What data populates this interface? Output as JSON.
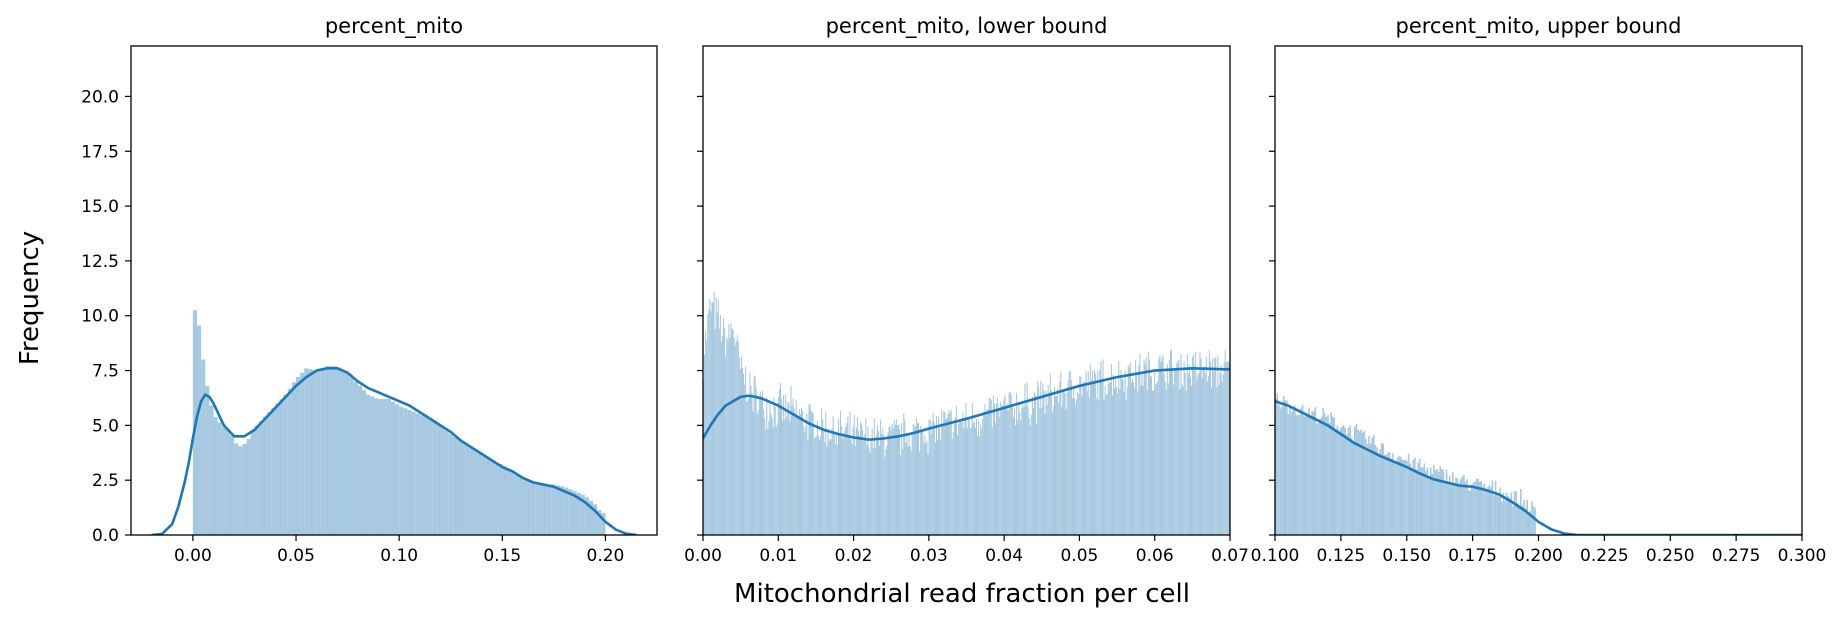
{
  "figure": {
    "ylabel": "Frequency",
    "xlabel": "Mitochondrial read fraction per cell"
  },
  "colors": {
    "bar": "#a6c8e0",
    "kde": "#1f77b4"
  },
  "chart_data": [
    {
      "type": "bar",
      "title": "percent_mito",
      "xlim": [
        -0.03,
        0.225
      ],
      "ylim": [
        0,
        22.3
      ],
      "xticks": [
        "0.00",
        "0.05",
        "0.10",
        "0.15",
        "0.20"
      ],
      "xtick_values": [
        0.0,
        0.05,
        0.1,
        0.15,
        0.2
      ],
      "yticks": [
        "0.0",
        "2.5",
        "5.0",
        "7.5",
        "10.0",
        "12.5",
        "15.0",
        "17.5",
        "20.0"
      ],
      "ytick_values": [
        0,
        2.5,
        5,
        7.5,
        10,
        12.5,
        15,
        17.5,
        20
      ],
      "bins": {
        "x_start": 0.0,
        "x_end": 0.2,
        "width": 0.002
      },
      "bar_anchors": [
        [
          0.0,
          10.1
        ],
        [
          0.002,
          10.4
        ],
        [
          0.004,
          8.7
        ],
        [
          0.006,
          7.3
        ],
        [
          0.008,
          6.3
        ],
        [
          0.01,
          5.5
        ],
        [
          0.014,
          5.0
        ],
        [
          0.018,
          4.7
        ],
        [
          0.022,
          4.0
        ],
        [
          0.026,
          4.2
        ],
        [
          0.03,
          4.9
        ],
        [
          0.035,
          5.4
        ],
        [
          0.04,
          5.9
        ],
        [
          0.045,
          6.4
        ],
        [
          0.05,
          7.1
        ],
        [
          0.055,
          7.6
        ],
        [
          0.06,
          7.5
        ],
        [
          0.065,
          7.7
        ],
        [
          0.07,
          7.7
        ],
        [
          0.075,
          7.4
        ],
        [
          0.08,
          6.9
        ],
        [
          0.085,
          6.4
        ],
        [
          0.09,
          6.2
        ],
        [
          0.095,
          6.2
        ],
        [
          0.1,
          5.9
        ],
        [
          0.105,
          5.7
        ],
        [
          0.11,
          5.5
        ],
        [
          0.115,
          5.3
        ],
        [
          0.12,
          5.0
        ],
        [
          0.125,
          4.6
        ],
        [
          0.13,
          4.3
        ],
        [
          0.135,
          4.0
        ],
        [
          0.14,
          3.7
        ],
        [
          0.145,
          3.4
        ],
        [
          0.15,
          3.2
        ],
        [
          0.155,
          2.9
        ],
        [
          0.16,
          2.6
        ],
        [
          0.165,
          2.4
        ],
        [
          0.17,
          2.3
        ],
        [
          0.175,
          2.3
        ],
        [
          0.18,
          2.2
        ],
        [
          0.185,
          2.0
        ],
        [
          0.19,
          1.8
        ],
        [
          0.195,
          1.4
        ],
        [
          0.198,
          1.0
        ]
      ],
      "kde": [
        [
          -0.02,
          0.0
        ],
        [
          -0.015,
          0.05
        ],
        [
          -0.01,
          0.5
        ],
        [
          -0.007,
          1.3
        ],
        [
          -0.004,
          2.4
        ],
        [
          -0.002,
          3.3
        ],
        [
          0.0,
          4.4
        ],
        [
          0.002,
          5.4
        ],
        [
          0.004,
          6.1
        ],
        [
          0.006,
          6.4
        ],
        [
          0.008,
          6.3
        ],
        [
          0.01,
          6.0
        ],
        [
          0.012,
          5.6
        ],
        [
          0.015,
          5.0
        ],
        [
          0.02,
          4.5
        ],
        [
          0.025,
          4.5
        ],
        [
          0.03,
          4.8
        ],
        [
          0.035,
          5.3
        ],
        [
          0.04,
          5.8
        ],
        [
          0.045,
          6.3
        ],
        [
          0.05,
          6.8
        ],
        [
          0.055,
          7.2
        ],
        [
          0.06,
          7.5
        ],
        [
          0.065,
          7.6
        ],
        [
          0.07,
          7.6
        ],
        [
          0.075,
          7.4
        ],
        [
          0.08,
          7.0
        ],
        [
          0.085,
          6.7
        ],
        [
          0.09,
          6.5
        ],
        [
          0.095,
          6.3
        ],
        [
          0.1,
          6.1
        ],
        [
          0.105,
          5.9
        ],
        [
          0.11,
          5.6
        ],
        [
          0.115,
          5.3
        ],
        [
          0.12,
          5.0
        ],
        [
          0.125,
          4.7
        ],
        [
          0.13,
          4.3
        ],
        [
          0.135,
          4.0
        ],
        [
          0.14,
          3.7
        ],
        [
          0.145,
          3.4
        ],
        [
          0.15,
          3.1
        ],
        [
          0.155,
          2.9
        ],
        [
          0.16,
          2.6
        ],
        [
          0.165,
          2.4
        ],
        [
          0.17,
          2.3
        ],
        [
          0.175,
          2.2
        ],
        [
          0.18,
          2.0
        ],
        [
          0.185,
          1.8
        ],
        [
          0.19,
          1.5
        ],
        [
          0.195,
          1.1
        ],
        [
          0.2,
          0.6
        ],
        [
          0.205,
          0.25
        ],
        [
          0.21,
          0.06
        ],
        [
          0.215,
          0.0
        ]
      ]
    },
    {
      "type": "bar",
      "title": "percent_mito, lower bound",
      "xlim": [
        0.0,
        0.07
      ],
      "ylim": [
        0,
        22.3
      ],
      "xticks": [
        "0.00",
        "0.01",
        "0.02",
        "0.03",
        "0.04",
        "0.05",
        "0.06",
        "0.07"
      ],
      "xtick_values": [
        0.0,
        0.01,
        0.02,
        0.03,
        0.04,
        0.05,
        0.06,
        0.07
      ],
      "yticks": [
        "0.0",
        "2.5",
        "5.0",
        "7.5",
        "10.0",
        "12.5",
        "15.0",
        "17.5",
        "20.0"
      ],
      "ytick_values": [
        0,
        2.5,
        5,
        7.5,
        10,
        12.5,
        15,
        17.5,
        20
      ],
      "bins": {
        "x_start": 0.0,
        "x_end": 0.07,
        "width": 0.00014
      },
      "bar_anchors": [
        [
          0.0,
          8.0
        ],
        [
          0.001,
          10.5
        ],
        [
          0.002,
          9.8
        ],
        [
          0.003,
          8.8
        ],
        [
          0.004,
          9.5
        ],
        [
          0.005,
          7.5
        ],
        [
          0.006,
          6.8
        ],
        [
          0.007,
          6.3
        ],
        [
          0.008,
          6.0
        ],
        [
          0.01,
          5.8
        ],
        [
          0.012,
          5.6
        ],
        [
          0.015,
          5.0
        ],
        [
          0.018,
          4.7
        ],
        [
          0.02,
          4.5
        ],
        [
          0.023,
          4.4
        ],
        [
          0.026,
          4.5
        ],
        [
          0.03,
          4.8
        ],
        [
          0.035,
          5.2
        ],
        [
          0.04,
          5.7
        ],
        [
          0.045,
          6.2
        ],
        [
          0.05,
          6.8
        ],
        [
          0.055,
          7.2
        ],
        [
          0.06,
          7.5
        ],
        [
          0.065,
          7.6
        ],
        [
          0.07,
          7.5
        ]
      ],
      "bar_noise": 1.2,
      "kde": [
        [
          0.0,
          4.4
        ],
        [
          0.001,
          5.0
        ],
        [
          0.002,
          5.5
        ],
        [
          0.003,
          5.9
        ],
        [
          0.004,
          6.1
        ],
        [
          0.005,
          6.3
        ],
        [
          0.006,
          6.35
        ],
        [
          0.007,
          6.3
        ],
        [
          0.008,
          6.2
        ],
        [
          0.01,
          5.9
        ],
        [
          0.012,
          5.5
        ],
        [
          0.014,
          5.1
        ],
        [
          0.016,
          4.8
        ],
        [
          0.018,
          4.6
        ],
        [
          0.02,
          4.45
        ],
        [
          0.022,
          4.35
        ],
        [
          0.024,
          4.4
        ],
        [
          0.026,
          4.5
        ],
        [
          0.028,
          4.65
        ],
        [
          0.03,
          4.85
        ],
        [
          0.035,
          5.3
        ],
        [
          0.04,
          5.8
        ],
        [
          0.045,
          6.3
        ],
        [
          0.05,
          6.8
        ],
        [
          0.055,
          7.2
        ],
        [
          0.06,
          7.5
        ],
        [
          0.065,
          7.6
        ],
        [
          0.07,
          7.55
        ]
      ]
    },
    {
      "type": "bar",
      "title": "percent_mito, upper bound",
      "xlim": [
        0.1,
        0.3
      ],
      "ylim": [
        0,
        22.3
      ],
      "xticks": [
        "0.100",
        "0.125",
        "0.150",
        "0.175",
        "0.200",
        "0.225",
        "0.250",
        "0.275",
        "0.300"
      ],
      "xtick_values": [
        0.1,
        0.125,
        0.15,
        0.175,
        0.2,
        0.225,
        0.25,
        0.275,
        0.3
      ],
      "yticks": [
        "0.0",
        "2.5",
        "5.0",
        "7.5",
        "10.0",
        "12.5",
        "15.0",
        "17.5",
        "20.0"
      ],
      "ytick_values": [
        0,
        2.5,
        5,
        7.5,
        10,
        12.5,
        15,
        17.5,
        20
      ],
      "bins": {
        "x_start": 0.1,
        "x_end": 0.199,
        "width": 0.0006
      },
      "bar_anchors": [
        [
          0.1,
          6.2
        ],
        [
          0.11,
          5.7
        ],
        [
          0.12,
          5.3
        ],
        [
          0.13,
          4.7
        ],
        [
          0.14,
          4.0
        ],
        [
          0.15,
          3.4
        ],
        [
          0.16,
          2.9
        ],
        [
          0.17,
          2.5
        ],
        [
          0.18,
          2.2
        ],
        [
          0.19,
          1.8
        ],
        [
          0.195,
          1.5
        ],
        [
          0.199,
          1.0
        ]
      ],
      "bar_noise": 0.5,
      "kde": [
        [
          0.1,
          6.1
        ],
        [
          0.105,
          5.9
        ],
        [
          0.11,
          5.6
        ],
        [
          0.115,
          5.3
        ],
        [
          0.12,
          5.0
        ],
        [
          0.125,
          4.6
        ],
        [
          0.13,
          4.2
        ],
        [
          0.135,
          3.9
        ],
        [
          0.14,
          3.6
        ],
        [
          0.145,
          3.35
        ],
        [
          0.15,
          3.1
        ],
        [
          0.155,
          2.8
        ],
        [
          0.16,
          2.55
        ],
        [
          0.165,
          2.4
        ],
        [
          0.17,
          2.25
        ],
        [
          0.175,
          2.2
        ],
        [
          0.18,
          2.05
        ],
        [
          0.185,
          1.85
        ],
        [
          0.19,
          1.5
        ],
        [
          0.195,
          1.1
        ],
        [
          0.2,
          0.6
        ],
        [
          0.205,
          0.25
        ],
        [
          0.21,
          0.06
        ],
        [
          0.215,
          0.0
        ],
        [
          0.3,
          0.0
        ]
      ]
    }
  ]
}
